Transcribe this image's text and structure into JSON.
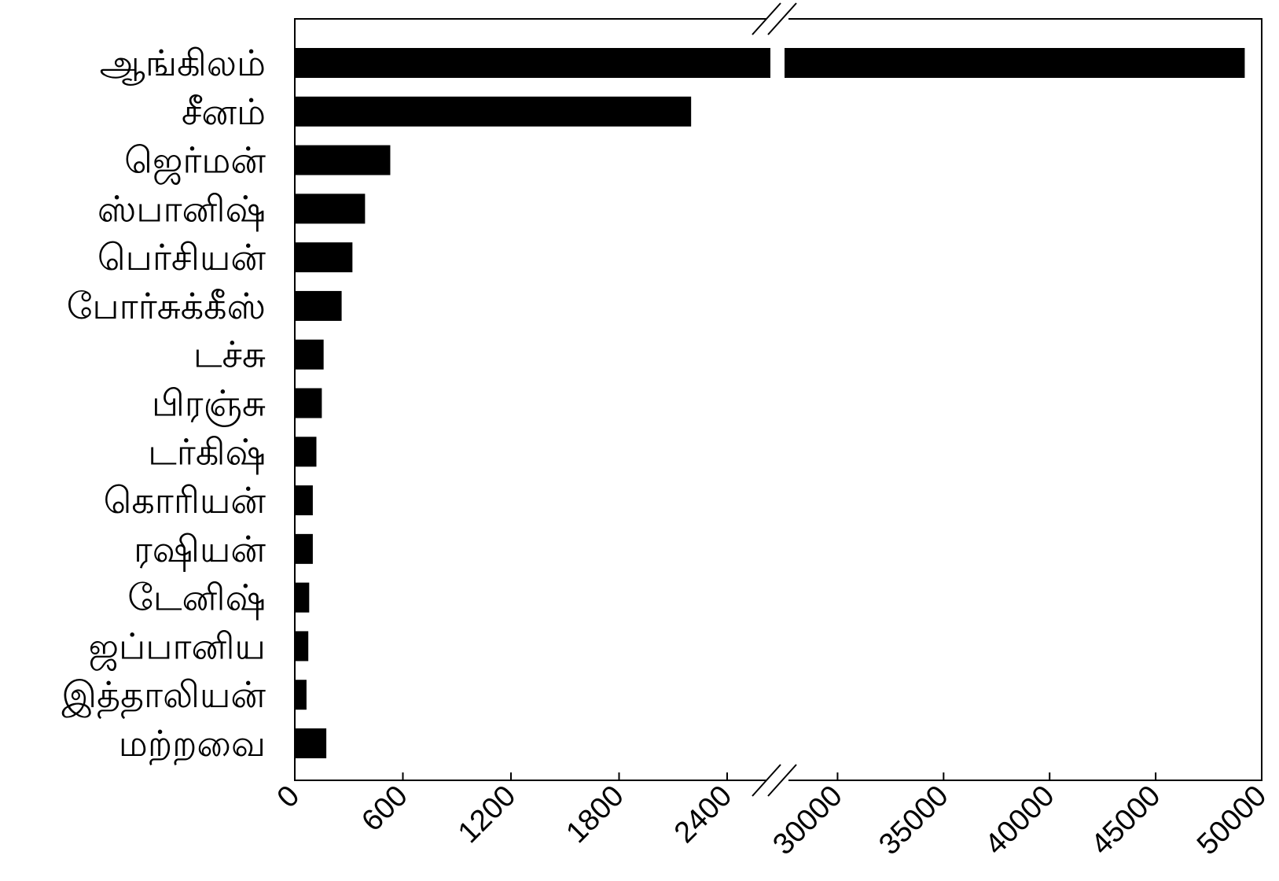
{
  "chart_data": {
    "type": "bar",
    "orientation": "horizontal",
    "categories": [
      "ஆங்கிலம்",
      "சீனம்",
      "ஜெர்மன்",
      "ஸ்பானிஷ்",
      "பெர்சியன்",
      "போர்சுக்கீஸ்",
      "டச்சு",
      "பிரஞ்சு",
      "டர்கிஷ்",
      "கொரியன்",
      "ரஷியன்",
      "டேனிஷ்",
      "ஜப்பானிய",
      "இத்தாலியன்",
      "மற்றவை"
    ],
    "values": [
      49200,
      2200,
      530,
      390,
      320,
      260,
      160,
      150,
      120,
      100,
      100,
      80,
      75,
      65,
      175
    ],
    "xlim_segments": [
      [
        0,
        2640
      ],
      [
        27500,
        50000
      ]
    ],
    "axis_break": true,
    "x_ticks": [
      {
        "value": 0,
        "label": "0"
      },
      {
        "value": 600,
        "label": "600"
      },
      {
        "value": 1200,
        "label": "1200"
      },
      {
        "value": 1800,
        "label": "1800"
      },
      {
        "value": 2400,
        "label": "2400"
      },
      {
        "value": 30000,
        "label": "30000"
      },
      {
        "value": 35000,
        "label": "35000"
      },
      {
        "value": 40000,
        "label": "40000"
      },
      {
        "value": 45000,
        "label": "45000"
      },
      {
        "value": 50000,
        "label": "50000"
      }
    ],
    "title": "",
    "xlabel": "",
    "ylabel": "",
    "grid": false,
    "bar_color": "#000000"
  }
}
